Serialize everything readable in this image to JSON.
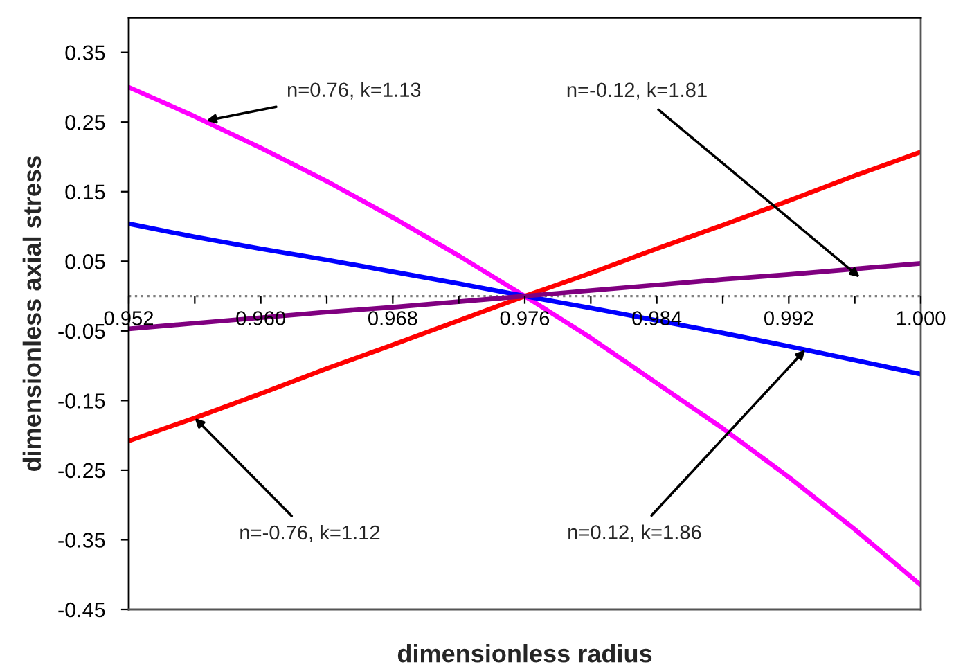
{
  "chart_data": {
    "type": "line",
    "xlabel": "dimensionless radius",
    "ylabel": "dimensionless axial stress",
    "x": [
      0.952,
      0.956,
      0.96,
      0.964,
      0.968,
      0.972,
      0.976,
      0.98,
      0.984,
      0.988,
      0.992,
      0.996,
      1.0
    ],
    "series": [
      {
        "color": "#ff00ff",
        "values": [
          0.3,
          0.258,
          0.213,
          0.165,
          0.113,
          0.058,
          0.0,
          -0.06,
          -0.125,
          -0.19,
          -0.26,
          -0.335,
          -0.415
        ]
      },
      {
        "color": "#0000ff",
        "values": [
          0.104,
          0.085,
          0.068,
          0.052,
          0.035,
          0.018,
          0.0,
          -0.017,
          -0.035,
          -0.053,
          -0.072,
          -0.092,
          -0.112
        ]
      },
      {
        "color": "#ff0000",
        "values": [
          -0.208,
          -0.175,
          -0.14,
          -0.104,
          -0.07,
          -0.035,
          0.0,
          0.033,
          0.068,
          0.102,
          0.137,
          0.173,
          0.207
        ]
      },
      {
        "color": "#800080",
        "values": [
          -0.047,
          -0.039,
          -0.031,
          -0.023,
          -0.016,
          -0.008,
          0.0,
          0.008,
          0.016,
          0.024,
          0.031,
          0.039,
          0.047
        ]
      }
    ],
    "xlim": [
      0.952,
      1.0
    ],
    "xticks": [
      0.952,
      {
        "value": 0.956,
        "label": null
      },
      {
        "value": 0.96,
        "label": "0.960"
      },
      {
        "value": 0.964,
        "label": null
      },
      0.968,
      {
        "value": 0.972,
        "label": null
      },
      0.976,
      {
        "value": 0.98,
        "label": null
      },
      0.984,
      {
        "value": 0.988,
        "label": null
      },
      0.992,
      {
        "value": 0.996,
        "label": null
      },
      {
        "value": 1.0,
        "label": "1.000"
      }
    ],
    "ylim": [
      -0.45,
      0.4
    ],
    "yticks": [
      -0.45,
      -0.35,
      -0.25,
      -0.15,
      -0.05,
      0.05,
      0.15,
      0.25,
      0.35
    ],
    "ref_lines": [
      {
        "axis": "y",
        "value": 0,
        "color": "#808080",
        "line_style": "dotted"
      }
    ],
    "annotations": [
      {
        "text": "n=0.76, k=1.13",
        "x": 0.9567,
        "y": 0.252
      },
      {
        "text": "n=-0.12, k=1.81",
        "x": 0.9963,
        "y": 0.027
      },
      {
        "text": "n=-0.76, k=1.12",
        "x": 0.956,
        "y": -0.175
      },
      {
        "text": "n=0.12, k=1.86",
        "x": 0.993,
        "y": -0.077
      }
    ],
    "grid": false,
    "legend": false,
    "marker": "none",
    "line_style": "solid"
  }
}
